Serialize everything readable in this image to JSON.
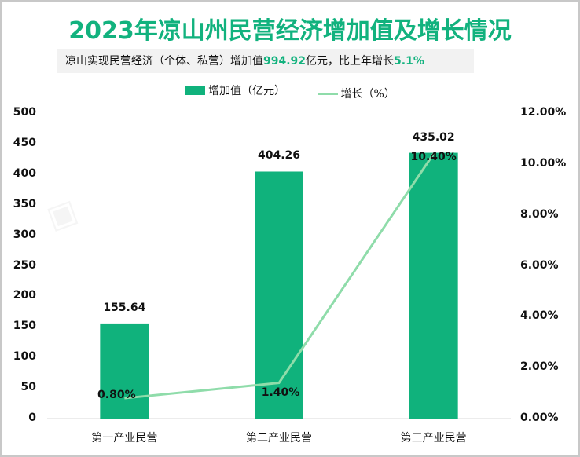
{
  "title": "2023年凉山州民营经济增加值及增长情况",
  "subtitle": {
    "prefix": "凉山实现民营经济（个体、私营）增加值",
    "value": "994.92",
    "middle": "亿元，比上年增长",
    "growth": "5.1%"
  },
  "legend": {
    "bar_label": "增加值（亿元）",
    "line_label": "增长（%）"
  },
  "colors": {
    "title": "#12b27e",
    "bar": "#10b27c",
    "line": "#8fdcaa"
  },
  "left_axis_ticks": [
    "500",
    "450",
    "400",
    "350",
    "300",
    "250",
    "200",
    "150",
    "100",
    "50",
    "0"
  ],
  "right_axis_ticks": [
    "12.00%",
    "10.00%",
    "8.00%",
    "6.00%",
    "4.00%",
    "2.00%",
    "0.00%"
  ],
  "categories": [
    "第一产业民营",
    "第二产业民营",
    "第三产业民营"
  ],
  "bar_labels": [
    "155.64",
    "404.26",
    "435.02"
  ],
  "line_labels": [
    "0.80%",
    "1.40%",
    "10.40%"
  ],
  "chart_data": {
    "type": "bar",
    "title": "2023年凉山州民营经济增加值及增长情况",
    "subtitle": "凉山实现民营经济（个体、私营）增加值994.92亿元，比上年增长5.1%",
    "categories": [
      "第一产业民营",
      "第二产业民营",
      "第三产业民营"
    ],
    "series": [
      {
        "name": "增加值（亿元）",
        "type": "bar",
        "axis": "left",
        "values": [
          155.64,
          404.26,
          435.02
        ]
      },
      {
        "name": "增长（%）",
        "type": "line",
        "axis": "right",
        "values": [
          0.8,
          1.4,
          10.4
        ]
      }
    ],
    "ylim_left": [
      0,
      500
    ],
    "ylim_right": [
      0,
      12
    ],
    "legend_position": "top",
    "grid": false
  }
}
